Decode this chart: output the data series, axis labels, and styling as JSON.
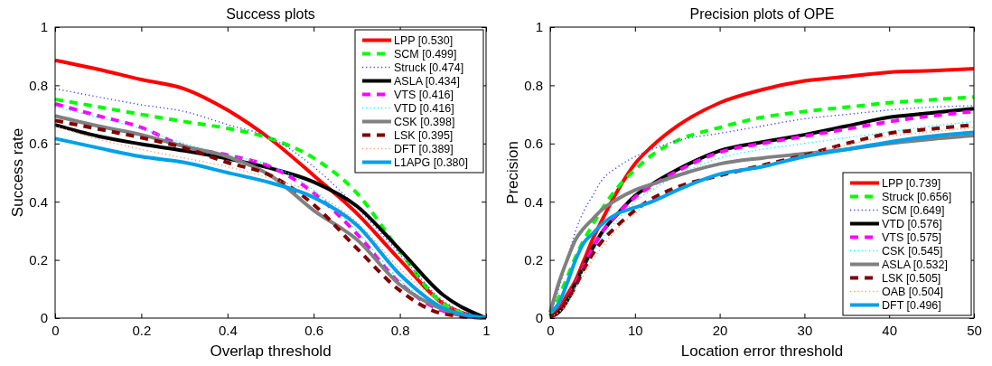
{
  "chart_data": [
    {
      "type": "line",
      "title": "Success plots",
      "xlabel": "Overlap threshold",
      "ylabel": "Success rate",
      "x": [
        0,
        0.1,
        0.2,
        0.3,
        0.4,
        0.5,
        0.6,
        0.7,
        0.8,
        0.9,
        1
      ],
      "xlim": [
        0,
        1
      ],
      "ylim": [
        0,
        1
      ],
      "xticks": [
        0,
        0.2,
        0.4,
        0.6,
        0.8,
        1
      ],
      "yticks": [
        0,
        0.2,
        0.4,
        0.6,
        0.8,
        1
      ],
      "legend": "top right",
      "grid": false,
      "series": [
        {
          "name": "LPP [0.530]",
          "color": "#ff0000",
          "line_style": "solid",
          "values": [
            0.886,
            0.855,
            0.82,
            0.788,
            0.715,
            0.615,
            0.49,
            0.36,
            0.2,
            0.05,
            0
          ]
        },
        {
          "name": "SCM [0.499]",
          "color": "#00ff00",
          "line_style": "dashed",
          "values": [
            0.752,
            0.726,
            0.7,
            0.675,
            0.652,
            0.617,
            0.55,
            0.43,
            0.23,
            0.05,
            0
          ]
        },
        {
          "name": "Struck [0.474]",
          "color": "#4040ff",
          "line_style": "dotted",
          "values": [
            0.788,
            0.76,
            0.733,
            0.71,
            0.665,
            0.62,
            0.52,
            0.38,
            0.22,
            0.06,
            0
          ]
        },
        {
          "name": "ASLA [0.434]",
          "color": "#000000",
          "line_style": "solid",
          "values": [
            0.664,
            0.625,
            0.598,
            0.575,
            0.548,
            0.515,
            0.468,
            0.385,
            0.235,
            0.08,
            0
          ]
        },
        {
          "name": "VTS [0.416]",
          "color": "#ff00ff",
          "line_style": "dashed",
          "values": [
            0.736,
            0.695,
            0.655,
            0.59,
            0.56,
            0.52,
            0.43,
            0.29,
            0.12,
            0.025,
            0
          ]
        },
        {
          "name": "VTD [0.416]",
          "color": "#00ffff",
          "line_style": "dotted",
          "values": [
            0.725,
            0.69,
            0.65,
            0.6,
            0.56,
            0.525,
            0.44,
            0.3,
            0.13,
            0.03,
            0
          ]
        },
        {
          "name": "CSK [0.398]",
          "color": "#808080",
          "line_style": "solid",
          "values": [
            0.695,
            0.66,
            0.63,
            0.59,
            0.555,
            0.49,
            0.37,
            0.27,
            0.115,
            0.03,
            0
          ]
        },
        {
          "name": "LSK [0.395]",
          "color": "#800000",
          "line_style": "dashed",
          "values": [
            0.679,
            0.65,
            0.62,
            0.585,
            0.535,
            0.49,
            0.39,
            0.24,
            0.095,
            0.015,
            0
          ]
        },
        {
          "name": "DFT [0.389]",
          "color": "#ff9966",
          "line_style": "dotted",
          "values": [
            0.66,
            0.615,
            0.58,
            0.55,
            0.52,
            0.48,
            0.43,
            0.33,
            0.17,
            0.05,
            0
          ]
        },
        {
          "name": "L1APG [0.380]",
          "color": "#00a0e8",
          "line_style": "solid",
          "values": [
            0.617,
            0.585,
            0.555,
            0.535,
            0.5,
            0.465,
            0.415,
            0.32,
            0.15,
            0.035,
            0
          ]
        }
      ]
    },
    {
      "type": "line",
      "title": "Precision plots of OPE",
      "xlabel": "Location error threshold",
      "ylabel": "Precision",
      "x": [
        0,
        1,
        2,
        3,
        4,
        5,
        6,
        8,
        10,
        12,
        15,
        20,
        25,
        30,
        35,
        40,
        45,
        50
      ],
      "xlim": [
        0,
        50
      ],
      "ylim": [
        0,
        1
      ],
      "xticks": [
        0,
        10,
        20,
        30,
        40,
        50
      ],
      "yticks": [
        0,
        0.2,
        0.4,
        0.6,
        0.8,
        1
      ],
      "legend": "bottom right",
      "grid": false,
      "series": [
        {
          "name": "LPP [0.739]",
          "color": "#ff0000",
          "line_style": "solid",
          "values": [
            0.01,
            0.03,
            0.08,
            0.13,
            0.2,
            0.27,
            0.33,
            0.44,
            0.53,
            0.59,
            0.66,
            0.74,
            0.785,
            0.815,
            0.83,
            0.845,
            0.85,
            0.857
          ]
        },
        {
          "name": "Struck [0.656]",
          "color": "#00ff00",
          "line_style": "dashed",
          "values": [
            0.01,
            0.07,
            0.14,
            0.21,
            0.27,
            0.32,
            0.37,
            0.45,
            0.51,
            0.56,
            0.61,
            0.655,
            0.69,
            0.71,
            0.725,
            0.74,
            0.75,
            0.76
          ]
        },
        {
          "name": "SCM [0.649]",
          "color": "#4040ff",
          "line_style": "dotted",
          "values": [
            0.01,
            0.1,
            0.2,
            0.3,
            0.37,
            0.42,
            0.47,
            0.52,
            0.555,
            0.58,
            0.61,
            0.635,
            0.66,
            0.685,
            0.7,
            0.715,
            0.725,
            0.73
          ]
        },
        {
          "name": "VTD [0.576]",
          "color": "#000000",
          "line_style": "solid",
          "values": [
            0.005,
            0.02,
            0.06,
            0.12,
            0.18,
            0.24,
            0.29,
            0.36,
            0.42,
            0.46,
            0.51,
            0.575,
            0.605,
            0.63,
            0.66,
            0.69,
            0.705,
            0.72
          ]
        },
        {
          "name": "VTS [0.575]",
          "color": "#ff00ff",
          "line_style": "dashed",
          "values": [
            0.005,
            0.02,
            0.06,
            0.12,
            0.18,
            0.24,
            0.29,
            0.36,
            0.415,
            0.455,
            0.505,
            0.57,
            0.6,
            0.625,
            0.65,
            0.675,
            0.695,
            0.71
          ]
        },
        {
          "name": "CSK [0.545]",
          "color": "#00ffff",
          "line_style": "dotted",
          "values": [
            0.005,
            0.02,
            0.06,
            0.11,
            0.17,
            0.22,
            0.27,
            0.34,
            0.4,
            0.44,
            0.49,
            0.55,
            0.58,
            0.6,
            0.62,
            0.64,
            0.66,
            0.675
          ]
        },
        {
          "name": "ASLA [0.532]",
          "color": "#808080",
          "line_style": "solid",
          "values": [
            0.02,
            0.12,
            0.2,
            0.27,
            0.31,
            0.34,
            0.37,
            0.41,
            0.44,
            0.46,
            0.49,
            0.53,
            0.55,
            0.565,
            0.58,
            0.6,
            0.615,
            0.627
          ]
        },
        {
          "name": "LSK [0.505]",
          "color": "#800000",
          "line_style": "dashed",
          "values": [
            0.005,
            0.02,
            0.06,
            0.11,
            0.17,
            0.22,
            0.26,
            0.32,
            0.37,
            0.41,
            0.45,
            0.49,
            0.525,
            0.56,
            0.6,
            0.635,
            0.65,
            0.664
          ]
        },
        {
          "name": "OAB [0.504]",
          "color": "#ff9966",
          "line_style": "dotted",
          "values": [
            0.005,
            0.02,
            0.05,
            0.1,
            0.15,
            0.2,
            0.24,
            0.31,
            0.36,
            0.4,
            0.44,
            0.49,
            0.525,
            0.56,
            0.595,
            0.625,
            0.64,
            0.655
          ]
        },
        {
          "name": "DFT [0.496]",
          "color": "#00a0e8",
          "line_style": "solid",
          "values": [
            0.02,
            0.05,
            0.12,
            0.2,
            0.26,
            0.29,
            0.32,
            0.36,
            0.38,
            0.4,
            0.44,
            0.495,
            0.52,
            0.555,
            0.58,
            0.605,
            0.625,
            0.638
          ]
        }
      ]
    }
  ]
}
